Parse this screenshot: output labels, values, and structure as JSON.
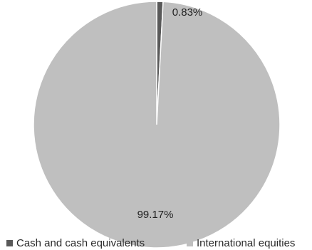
{
  "chart_data": {
    "type": "pie",
    "title": "",
    "categories": [
      "Cash and cash equivalents",
      "International equities"
    ],
    "values": [
      0.83,
      99.17
    ],
    "data_labels": [
      "0.83%",
      "99.17%"
    ],
    "colors": [
      "#595959",
      "#bfbfbf"
    ],
    "legend_position": "bottom",
    "slice_border_color": "#ffffff"
  }
}
